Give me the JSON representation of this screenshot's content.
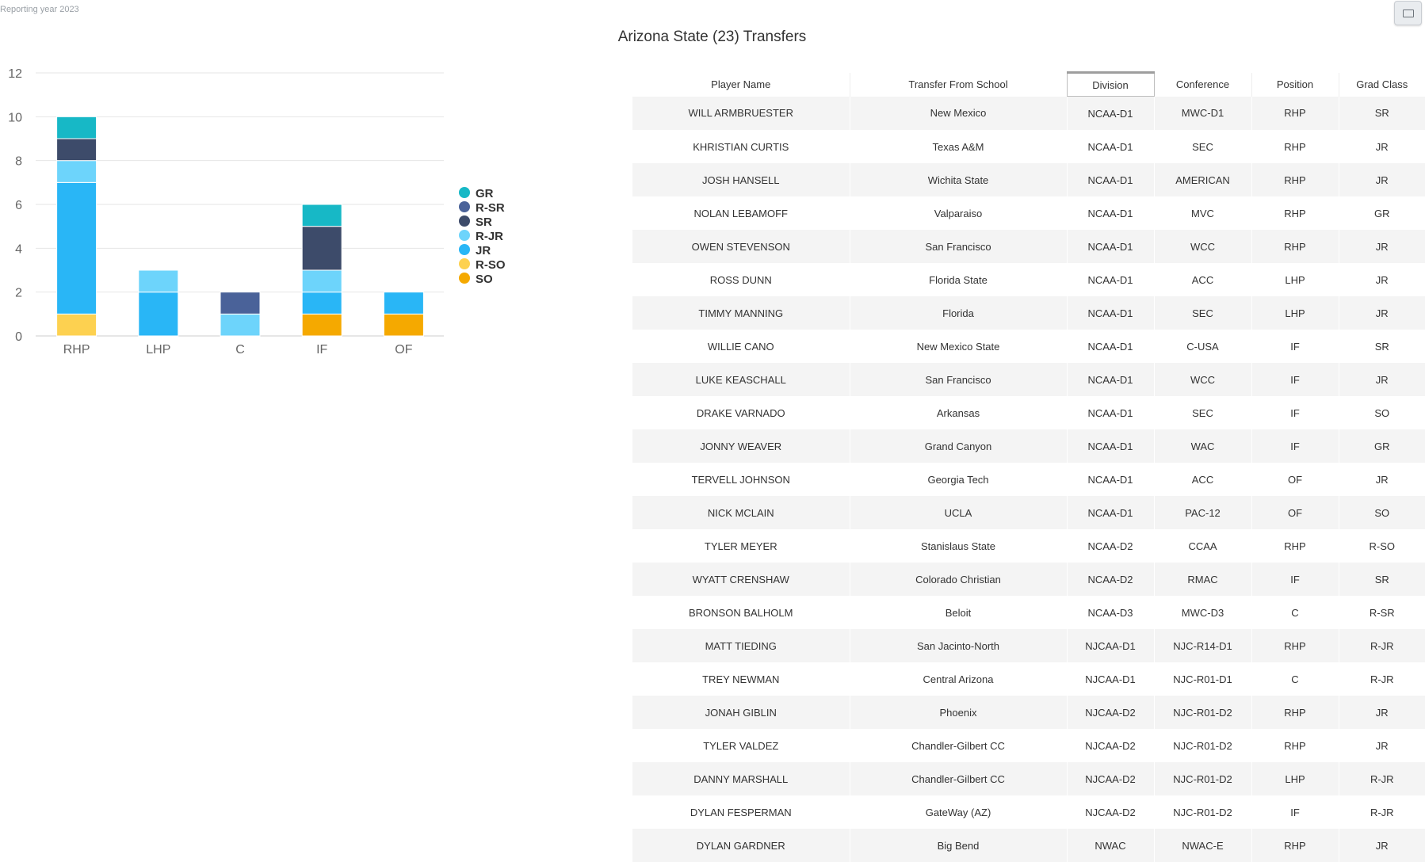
{
  "reporting_label": "Reporting year 2023",
  "page_title": "Arizona State (23) Transfers",
  "chart_data": {
    "type": "bar",
    "stacked": true,
    "categories": [
      "RHP",
      "LHP",
      "C",
      "IF",
      "OF"
    ],
    "series": [
      {
        "name": "SO",
        "color": "#f5a900",
        "values": [
          0,
          0,
          0,
          1,
          1
        ]
      },
      {
        "name": "R-SO",
        "color": "#fdd150",
        "values": [
          1,
          0,
          0,
          0,
          0
        ]
      },
      {
        "name": "JR",
        "color": "#29b6f6",
        "values": [
          6,
          2,
          0,
          1,
          1
        ]
      },
      {
        "name": "R-JR",
        "color": "#6dd4fb",
        "values": [
          1,
          1,
          1,
          1,
          0
        ]
      },
      {
        "name": "SR",
        "color": "#3d4b6a",
        "values": [
          1,
          0,
          0,
          2,
          0
        ]
      },
      {
        "name": "R-SR",
        "color": "#4a6299",
        "values": [
          0,
          0,
          1,
          0,
          0
        ]
      },
      {
        "name": "GR",
        "color": "#17b8c6",
        "values": [
          1,
          0,
          0,
          1,
          0
        ]
      }
    ],
    "legend_order": [
      "GR",
      "R-SR",
      "SR",
      "R-JR",
      "JR",
      "R-SO",
      "SO"
    ],
    "yticks": [
      0,
      2,
      4,
      6,
      8,
      10,
      12
    ],
    "ylim": [
      0,
      12
    ],
    "grid": true,
    "legend_position": "right"
  },
  "table": {
    "headers": [
      "Player Name",
      "Transfer From School",
      "Division",
      "Conference",
      "Position",
      "Grad Class"
    ],
    "sorted_column": "Division",
    "rows": [
      [
        "WILL ARMBRUESTER",
        "New Mexico",
        "NCAA-D1",
        "MWC-D1",
        "RHP",
        "SR"
      ],
      [
        "KHRISTIAN CURTIS",
        "Texas A&M",
        "NCAA-D1",
        "SEC",
        "RHP",
        "JR"
      ],
      [
        "JOSH HANSELL",
        "Wichita State",
        "NCAA-D1",
        "AMERICAN",
        "RHP",
        "JR"
      ],
      [
        "NOLAN LEBAMOFF",
        "Valparaiso",
        "NCAA-D1",
        "MVC",
        "RHP",
        "GR"
      ],
      [
        "OWEN STEVENSON",
        "San Francisco",
        "NCAA-D1",
        "WCC",
        "RHP",
        "JR"
      ],
      [
        "ROSS DUNN",
        "Florida State",
        "NCAA-D1",
        "ACC",
        "LHP",
        "JR"
      ],
      [
        "TIMMY MANNING",
        "Florida",
        "NCAA-D1",
        "SEC",
        "LHP",
        "JR"
      ],
      [
        "WILLIE CANO",
        "New Mexico State",
        "NCAA-D1",
        "C-USA",
        "IF",
        "SR"
      ],
      [
        "LUKE KEASCHALL",
        "San Francisco",
        "NCAA-D1",
        "WCC",
        "IF",
        "JR"
      ],
      [
        "DRAKE VARNADO",
        "Arkansas",
        "NCAA-D1",
        "SEC",
        "IF",
        "SO"
      ],
      [
        "JONNY WEAVER",
        "Grand Canyon",
        "NCAA-D1",
        "WAC",
        "IF",
        "GR"
      ],
      [
        "TERVELL JOHNSON",
        "Georgia Tech",
        "NCAA-D1",
        "ACC",
        "OF",
        "JR"
      ],
      [
        "NICK MCLAIN",
        "UCLA",
        "NCAA-D1",
        "PAC-12",
        "OF",
        "SO"
      ],
      [
        "TYLER MEYER",
        "Stanislaus State",
        "NCAA-D2",
        "CCAA",
        "RHP",
        "R-SO"
      ],
      [
        "WYATT CRENSHAW",
        "Colorado Christian",
        "NCAA-D2",
        "RMAC",
        "IF",
        "SR"
      ],
      [
        "BRONSON BALHOLM",
        "Beloit",
        "NCAA-D3",
        "MWC-D3",
        "C",
        "R-SR"
      ],
      [
        "MATT TIEDING",
        "San Jacinto-North",
        "NJCAA-D1",
        "NJC-R14-D1",
        "RHP",
        "R-JR"
      ],
      [
        "TREY NEWMAN",
        "Central Arizona",
        "NJCAA-D1",
        "NJC-R01-D1",
        "C",
        "R-JR"
      ],
      [
        "JONAH GIBLIN",
        "Phoenix",
        "NJCAA-D2",
        "NJC-R01-D2",
        "RHP",
        "JR"
      ],
      [
        "TYLER VALDEZ",
        "Chandler-Gilbert CC",
        "NJCAA-D2",
        "NJC-R01-D2",
        "RHP",
        "JR"
      ],
      [
        "DANNY MARSHALL",
        "Chandler-Gilbert CC",
        "NJCAA-D2",
        "NJC-R01-D2",
        "LHP",
        "R-JR"
      ],
      [
        "DYLAN FESPERMAN",
        "GateWay (AZ)",
        "NJCAA-D2",
        "NJC-R01-D2",
        "IF",
        "R-JR"
      ],
      [
        "DYLAN GARDNER",
        "Big Bend",
        "NWAC",
        "NWAC-E",
        "RHP",
        "JR"
      ]
    ]
  }
}
